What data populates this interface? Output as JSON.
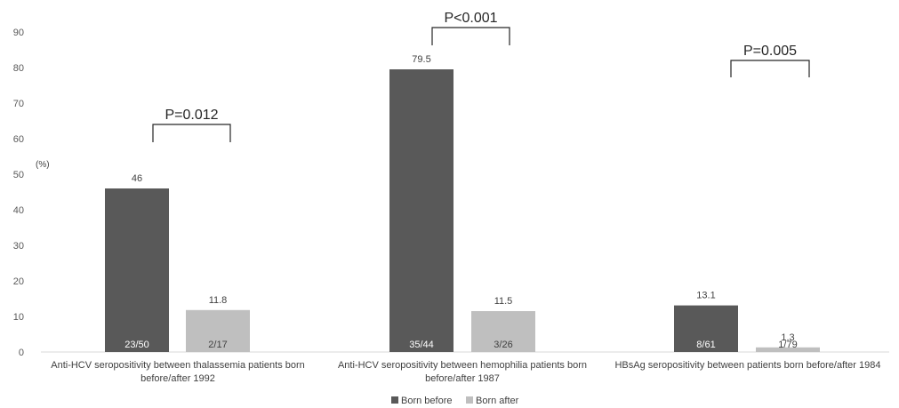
{
  "chart_data": {
    "type": "bar",
    "unit_label": "(%)",
    "ylim": [
      0,
      90
    ],
    "yticks": [
      0,
      10,
      20,
      30,
      40,
      50,
      60,
      70,
      80,
      90
    ],
    "grid": false,
    "legend_position": "bottom",
    "categories": [
      [
        "Anti-HCV seropositivity between thalassemia patients born",
        "before/after 1992"
      ],
      [
        "Anti-HCV seropositivity between hemophilia patients born",
        "before/after 1987"
      ],
      [
        "HBsAg seropositivity between patients born before/after 1984"
      ]
    ],
    "series": [
      {
        "name": "Born before",
        "color": "#595959",
        "values": [
          46,
          79.5,
          13.1
        ],
        "value_labels": [
          "46",
          "79.5",
          "13.1"
        ],
        "inner_labels": [
          "23/50",
          "35/44",
          "8/61"
        ]
      },
      {
        "name": "Born after",
        "color": "#bfbfbf",
        "values": [
          11.8,
          11.5,
          1.3
        ],
        "value_labels": [
          "11.8",
          "11.5",
          "1.3"
        ],
        "inner_labels": [
          "2/17",
          "3/26",
          "1/79"
        ]
      }
    ],
    "p_values": [
      "P=0.012",
      "P<0.001",
      "P=0.005"
    ]
  }
}
